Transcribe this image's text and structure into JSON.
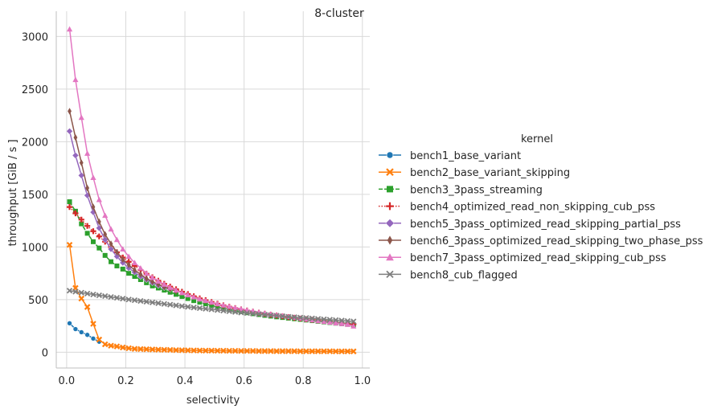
{
  "chart_data": {
    "type": "line",
    "title": "8-cluster",
    "xlabel": "selectivity",
    "ylabel": "throughput [GiB / s ]",
    "xlim": [
      -0.035,
      1.025
    ],
    "ylim": [
      -150,
      3240
    ],
    "xticks": [
      0.0,
      0.2,
      0.4,
      0.6,
      0.8,
      1.0
    ],
    "xtick_labels": [
      "0.0",
      "0.2",
      "0.4",
      "0.6",
      "0.8",
      "1.0"
    ],
    "yticks": [
      0,
      500,
      1000,
      1500,
      2000,
      2500,
      3000
    ],
    "ytick_labels": [
      "0",
      "500",
      "1000",
      "1500",
      "2000",
      "2500",
      "3000"
    ],
    "grid": true,
    "legend_title": "kernel",
    "legend_placement": "right",
    "series": [
      {
        "name": "bench1_base_variant",
        "color": "#1f77b4",
        "marker": "circle",
        "linestyle": "solid",
        "x": [
          0.01,
          0.03,
          0.05,
          0.07,
          0.09,
          0.11
        ],
        "y": [
          275,
          220,
          190,
          165,
          130,
          100
        ]
      },
      {
        "name": "bench2_base_variant_skipping",
        "color": "#ff7f0e",
        "marker": "x",
        "linestyle": "solid",
        "x": [
          0.01,
          0.03,
          0.05,
          0.07,
          0.09,
          0.11,
          0.13,
          0.15,
          0.17,
          0.19,
          0.21,
          0.23,
          0.25,
          0.27,
          0.29,
          0.31,
          0.33,
          0.35,
          0.37,
          0.39,
          0.41,
          0.43,
          0.45,
          0.47,
          0.49,
          0.51,
          0.53,
          0.55,
          0.57,
          0.59,
          0.61,
          0.63,
          0.65,
          0.67,
          0.69,
          0.71,
          0.73,
          0.75,
          0.77,
          0.79,
          0.81,
          0.83,
          0.85,
          0.87,
          0.89,
          0.91,
          0.93,
          0.95,
          0.97
        ],
        "y": [
          1020,
          610,
          510,
          430,
          270,
          120,
          75,
          62,
          55,
          45,
          38,
          32,
          30,
          28,
          26,
          24,
          23,
          22,
          20,
          19,
          18,
          17,
          16,
          15,
          15,
          14,
          14,
          13,
          13,
          12,
          12,
          12,
          11,
          11,
          11,
          10,
          10,
          10,
          10,
          9,
          9,
          9,
          9,
          9,
          9,
          8,
          8,
          8,
          8
        ]
      },
      {
        "name": "bench3_3pass_streaming",
        "color": "#2ca02c",
        "marker": "square",
        "linestyle": "dashed",
        "x": [
          0.01,
          0.03,
          0.05,
          0.07,
          0.09,
          0.11,
          0.13,
          0.15,
          0.17,
          0.19,
          0.21,
          0.23,
          0.25,
          0.27,
          0.29,
          0.31,
          0.33,
          0.35,
          0.37,
          0.39,
          0.41,
          0.43,
          0.45,
          0.47,
          0.49,
          0.51,
          0.53,
          0.55,
          0.57,
          0.59,
          0.61,
          0.63,
          0.65,
          0.67,
          0.69,
          0.71,
          0.73,
          0.75,
          0.77,
          0.79,
          0.81,
          0.83,
          0.85,
          0.87,
          0.89,
          0.91,
          0.93,
          0.95,
          0.97
        ],
        "y": [
          1430,
          1340,
          1220,
          1130,
          1050,
          990,
          920,
          860,
          820,
          790,
          750,
          720,
          690,
          660,
          630,
          610,
          590,
          570,
          550,
          530,
          510,
          490,
          475,
          460,
          445,
          430,
          418,
          406,
          395,
          385,
          375,
          366,
          358,
          350,
          343,
          336,
          330,
          324,
          318,
          312,
          306,
          300,
          294,
          288,
          282,
          276,
          270,
          265,
          260
        ]
      },
      {
        "name": "bench4_optimized_read_non_skipping_cub_pss",
        "color": "#d62728",
        "marker": "plus",
        "linestyle": "dotted",
        "x": [
          0.01,
          0.03,
          0.05,
          0.07,
          0.09,
          0.11,
          0.13,
          0.15,
          0.17,
          0.19,
          0.21,
          0.23,
          0.25,
          0.27,
          0.29,
          0.31,
          0.33,
          0.35,
          0.37,
          0.39,
          0.41,
          0.43,
          0.45,
          0.47,
          0.49,
          0.51,
          0.53,
          0.55,
          0.57,
          0.59,
          0.61,
          0.63,
          0.65,
          0.67,
          0.69,
          0.71,
          0.73,
          0.75,
          0.77,
          0.79,
          0.81,
          0.83,
          0.85,
          0.87,
          0.89,
          0.91,
          0.93,
          0.95,
          0.97
        ],
        "y": [
          1380,
          1320,
          1260,
          1200,
          1150,
          1100,
          1050,
          1000,
          950,
          900,
          860,
          820,
          780,
          745,
          712,
          680,
          650,
          623,
          598,
          575,
          553,
          532,
          512,
          494,
          477,
          461,
          446,
          432,
          419,
          407,
          396,
          385,
          375,
          366,
          357,
          349,
          341,
          334,
          327,
          320,
          314,
          308,
          302,
          296,
          290,
          284,
          278,
          272,
          266
        ]
      },
      {
        "name": "bench5_3pass_optimized_read_skipping_partial_pss",
        "color": "#9467bd",
        "marker": "diamond",
        "linestyle": "solid",
        "x": [
          0.01,
          0.03,
          0.05,
          0.07,
          0.09,
          0.11,
          0.13,
          0.15,
          0.17,
          0.19,
          0.21,
          0.23,
          0.25,
          0.27,
          0.29,
          0.31,
          0.33,
          0.35
        ],
        "y": [
          2100,
          1870,
          1680,
          1490,
          1330,
          1180,
          1070,
          980,
          910,
          850,
          800,
          760,
          720,
          690,
          660,
          635,
          615,
          600
        ]
      },
      {
        "name": "bench6_3pass_optimized_read_skipping_two_phase_pss",
        "color": "#8c564b",
        "marker": "thin-diamond",
        "linestyle": "solid",
        "x": [
          0.01,
          0.03,
          0.05,
          0.07,
          0.09,
          0.11,
          0.13,
          0.15,
          0.17,
          0.19,
          0.21,
          0.23,
          0.25,
          0.27,
          0.29,
          0.31,
          0.33,
          0.35,
          0.37
        ],
        "y": [
          2290,
          2040,
          1800,
          1560,
          1380,
          1240,
          1120,
          1030,
          950,
          880,
          830,
          780,
          740,
          700,
          670,
          645,
          620,
          600,
          580
        ]
      },
      {
        "name": "bench7_3pass_optimized_read_skipping_cub_pss",
        "color": "#e377c2",
        "marker": "triangle",
        "linestyle": "solid",
        "x": [
          0.01,
          0.03,
          0.05,
          0.07,
          0.09,
          0.11,
          0.13,
          0.15,
          0.17,
          0.19,
          0.21,
          0.23,
          0.25,
          0.27,
          0.29,
          0.31,
          0.33,
          0.35,
          0.37,
          0.39,
          0.41,
          0.43,
          0.45,
          0.47,
          0.49,
          0.51,
          0.53,
          0.55,
          0.57,
          0.59,
          0.61,
          0.63,
          0.65,
          0.67,
          0.69,
          0.71,
          0.73,
          0.75,
          0.77,
          0.79,
          0.81,
          0.83,
          0.85,
          0.87,
          0.89,
          0.91,
          0.93,
          0.95,
          0.97
        ],
        "y": [
          3070,
          2590,
          2230,
          1890,
          1660,
          1450,
          1300,
          1170,
          1070,
          980,
          910,
          850,
          800,
          750,
          710,
          675,
          645,
          615,
          590,
          565,
          545,
          525,
          505,
          490,
          475,
          460,
          447,
          435,
          423,
          412,
          401,
          391,
          381,
          372,
          363,
          354,
          346,
          338,
          330,
          322,
          314,
          306,
          299,
          292,
          285,
          278,
          271,
          264,
          248
        ]
      },
      {
        "name": "bench8_cub_flagged",
        "color": "#7f7f7f",
        "marker": "x-filled",
        "linestyle": "solid",
        "x": [
          0.01,
          0.03,
          0.05,
          0.07,
          0.09,
          0.11,
          0.13,
          0.15,
          0.17,
          0.19,
          0.21,
          0.23,
          0.25,
          0.27,
          0.29,
          0.31,
          0.33,
          0.35,
          0.37,
          0.39,
          0.41,
          0.43,
          0.45,
          0.47,
          0.49,
          0.51,
          0.53,
          0.55,
          0.57,
          0.59,
          0.61,
          0.63,
          0.65,
          0.67,
          0.69,
          0.71,
          0.73,
          0.75,
          0.77,
          0.79,
          0.81,
          0.83,
          0.85,
          0.87,
          0.89,
          0.91,
          0.93,
          0.95,
          0.97
        ],
        "y": [
          585,
          575,
          566,
          557,
          549,
          541,
          533,
          525,
          517,
          509,
          501,
          494,
          487,
          480,
          473,
          466,
          459,
          452,
          445,
          438,
          431,
          425,
          419,
          413,
          407,
          401,
          395,
          389,
          383,
          377,
          372,
          367,
          362,
          357,
          352,
          347,
          342,
          337,
          333,
          329,
          325,
          321,
          317,
          313,
          309,
          305,
          301,
          297,
          293
        ]
      }
    ]
  }
}
